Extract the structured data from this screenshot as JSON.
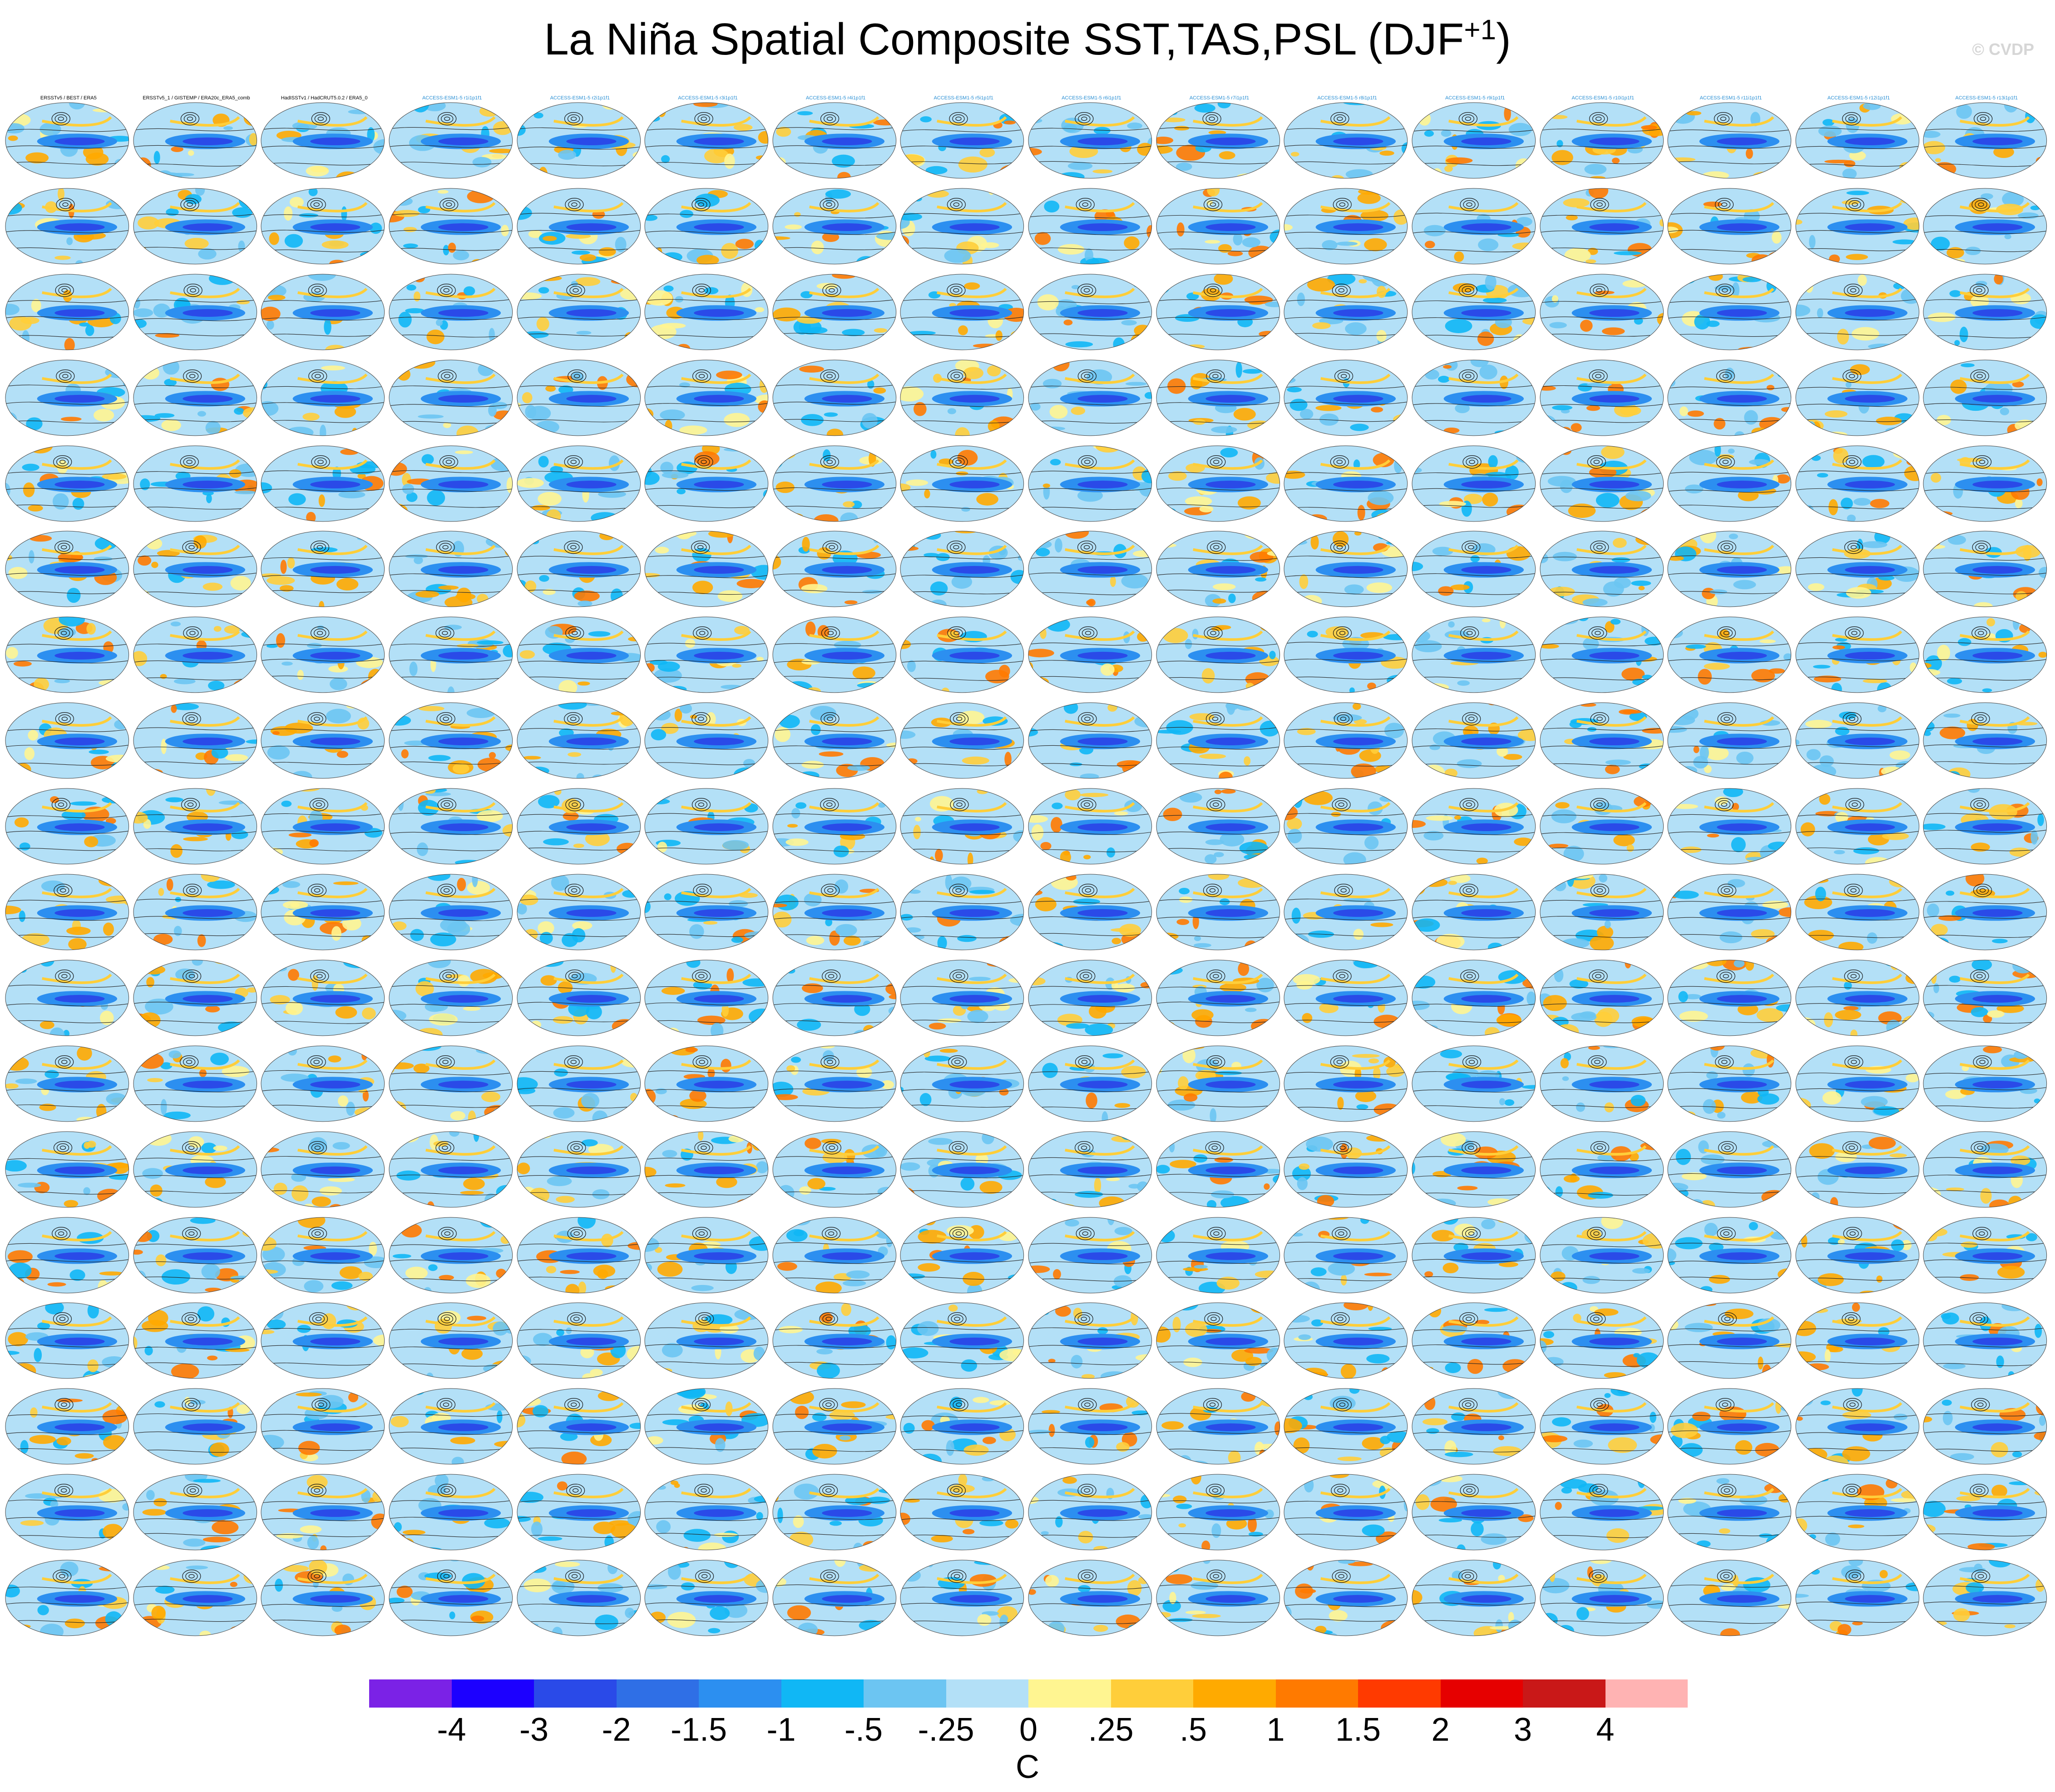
{
  "title": "La Niña Spatial Composite SST,TAS,PSL (DJF",
  "title_superscript": "+1",
  "title_suffix": ")",
  "watermark": "© CVDP",
  "colorbar": {
    "colors": [
      "#7b22e6",
      "#1c00ff",
      "#2a4ae8",
      "#2f6fe6",
      "#2c8ff0",
      "#10b7f5",
      "#6cc5f2",
      "#b3e0f7",
      "#fff591",
      "#ffce3a",
      "#ffaa00",
      "#ff7a00",
      "#ff3a00",
      "#e60000",
      "#c91818",
      "#ffb3b3"
    ],
    "tick_labels": [
      "-4",
      "-3",
      "-2",
      "-1.5",
      "-1",
      "-.5",
      "-.25",
      "0",
      ".25",
      ".5",
      "1",
      "1.5",
      "2",
      "3",
      "4"
    ],
    "unit": "C"
  },
  "chart_data": {
    "type": "heatmap",
    "title": "La Niña Spatial Composite SST,TAS,PSL (DJF+1)",
    "variables": [
      "SST",
      "TAS",
      "PSL"
    ],
    "season": "DJF+1",
    "layout": {
      "rows": 18,
      "columns": 16
    },
    "color_levels": [
      -4,
      -3,
      -2,
      -1.5,
      -1,
      -0.5,
      -0.25,
      0,
      0.25,
      0.5,
      1,
      1.5,
      2,
      3,
      4
    ],
    "units": "C",
    "panels": [
      {
        "label": "ERSSTv5 / BEST / ERA5",
        "label_color": "#000000"
      },
      {
        "label": "ERSSTv5_1 / GISTEMP / ERA20c_ERA5_comb",
        "label_color": "#000000"
      },
      {
        "label": "HadISSTv1 / HadCRUT5.0.2 / ERA5_0",
        "label_color": "#000000"
      },
      {
        "label": "ACCESS-ESM1-5 r1i1p1f1",
        "label_color": "#2a8fd4"
      },
      {
        "label": "ACCESS-ESM1-5 r2i1p1f1",
        "label_color": "#2a8fd4"
      },
      {
        "label": "ACCESS-ESM1-5 r3i1p1f1",
        "label_color": "#2a8fd4"
      },
      {
        "label": "ACCESS-ESM1-5 r4i1p1f1",
        "label_color": "#2a8fd4"
      },
      {
        "label": "ACCESS-ESM1-5 r5i1p1f1",
        "label_color": "#2a8fd4"
      },
      {
        "label": "ACCESS-ESM1-5 r6i1p1f1",
        "label_color": "#2a8fd4"
      },
      {
        "label": "ACCESS-ESM1-5 r7i1p1f1",
        "label_color": "#2a8fd4"
      },
      {
        "label": "ACCESS-ESM1-5 r8i1p1f1",
        "label_color": "#2a8fd4"
      },
      {
        "label": "ACCESS-ESM1-5 r9i1p1f1",
        "label_color": "#2a8fd4"
      },
      {
        "label": "ACCESS-ESM1-5 r10i1p1f1",
        "label_color": "#2a8fd4"
      },
      {
        "label": "ACCESS-ESM1-5 r11i1p1f1",
        "label_color": "#2a8fd4"
      },
      {
        "label": "ACCESS-ESM1-5 r12i1p1f1",
        "label_color": "#2a8fd4"
      },
      {
        "label": "ACCESS-ESM1-5 r13i1p1f1",
        "label_color": "#2a8fd4"
      }
    ]
  }
}
